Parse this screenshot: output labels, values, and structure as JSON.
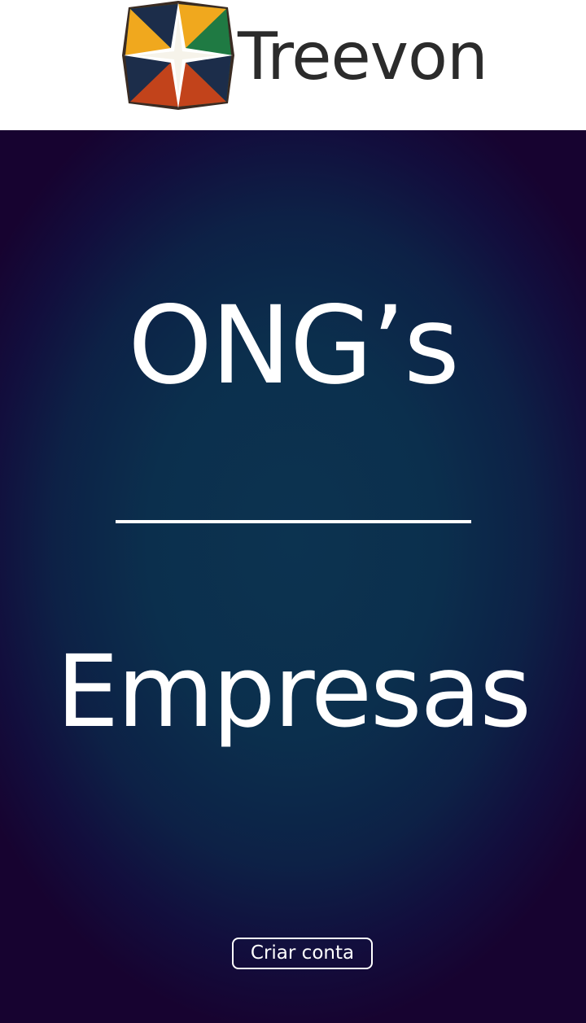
{
  "header": {
    "logo_icon": "treevon-compass-star-icon",
    "brand_name": "Treevon"
  },
  "main": {
    "options": [
      {
        "label": "ONG’s"
      },
      {
        "label": "Empresas"
      }
    ],
    "cta_label": "Criar conta"
  },
  "colors": {
    "header_bg": "#ffffff",
    "brand_text": "#2b2b2b",
    "hero_center": "#0c3350",
    "hero_edge": "#170330",
    "foreground": "#ffffff",
    "logo_yellow": "#f0a81e",
    "logo_green": "#1f7a43",
    "logo_red": "#c2431b",
    "logo_navy": "#1c2d4a"
  }
}
